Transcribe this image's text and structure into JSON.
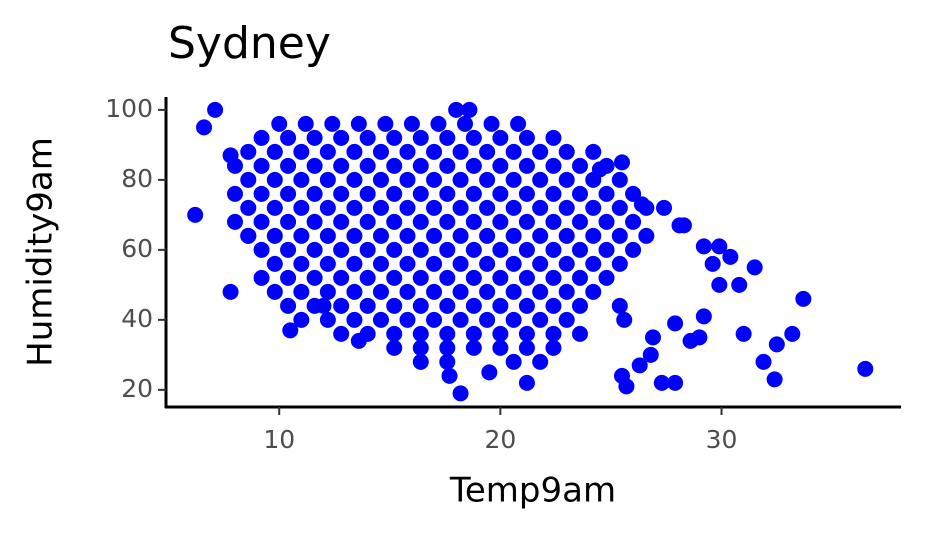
{
  "chart_data": {
    "type": "scatter",
    "title": "Sydney",
    "x_label": "Temp9am",
    "y_label": "Humidity9am",
    "color": "#0000ff",
    "xlim": [
      4.88,
      38.07
    ],
    "ylim": [
      15.1,
      103.4
    ],
    "xticks": [
      10,
      20,
      30
    ],
    "yticks": [
      20,
      40,
      60,
      80,
      100
    ],
    "grid": false,
    "x": [
      10,
      11.2,
      12.4,
      13.6,
      14.8,
      16,
      17.2,
      18.4,
      19.6,
      20.8,
      9.2,
      10.4,
      11.6,
      12.8,
      14,
      15.2,
      16.4,
      17.6,
      18.8,
      20,
      21.2,
      22.4,
      8.6,
      9.8,
      11,
      12.2,
      13.4,
      14.6,
      15.8,
      17,
      18.2,
      19.4,
      20.6,
      21.8,
      23,
      24.2,
      8,
      9.2,
      10.4,
      11.6,
      12.8,
      14,
      15.2,
      16.4,
      17.6,
      18.8,
      20,
      21.2,
      22.4,
      23.6,
      24.8,
      8.6,
      9.8,
      11,
      12.2,
      13.4,
      14.6,
      15.8,
      17,
      18.2,
      19.4,
      20.6,
      21.8,
      23,
      24.2,
      25.4,
      8,
      9.2,
      10.4,
      11.6,
      12.8,
      14,
      15.2,
      16.4,
      17.6,
      18.8,
      20,
      21.2,
      22.4,
      23.6,
      24.8,
      26,
      8.6,
      9.8,
      11,
      12.2,
      13.4,
      14.6,
      15.8,
      17,
      18.2,
      19.4,
      20.6,
      21.8,
      23,
      24.2,
      25.4,
      26.6,
      8,
      9.2,
      10.4,
      11.6,
      12.8,
      14,
      15.2,
      16.4,
      17.6,
      18.8,
      20,
      21.2,
      22.4,
      23.6,
      24.8,
      26,
      8.6,
      9.8,
      11,
      12.2,
      13.4,
      14.6,
      15.8,
      17,
      18.2,
      19.4,
      20.6,
      21.8,
      23,
      24.2,
      25.4,
      26.6,
      9.2,
      10.4,
      11.6,
      12.8,
      14,
      15.2,
      16.4,
      17.6,
      18.8,
      20,
      21.2,
      22.4,
      23.6,
      24.8,
      26,
      9.8,
      11,
      12.2,
      13.4,
      14.6,
      15.8,
      17,
      18.2,
      19.4,
      20.6,
      21.8,
      23,
      24.2,
      25.4,
      9.2,
      10.4,
      11.6,
      12.8,
      14,
      15.2,
      16.4,
      17.6,
      18.8,
      20,
      21.2,
      22.4,
      23.6,
      24.8,
      9.8,
      11,
      12.2,
      13.4,
      14.6,
      15.8,
      17,
      18.2,
      19.4,
      20.6,
      21.8,
      23,
      24.2,
      10.4,
      11.6,
      12.8,
      14,
      15.2,
      16.4,
      17.6,
      18.8,
      20,
      21.2,
      22.4,
      23.6,
      11,
      12.2,
      13.4,
      14.6,
      15.8,
      17,
      18.2,
      19.4,
      20.6,
      21.8,
      23,
      12.8,
      14,
      15.2,
      16.4,
      17.6,
      18.8,
      20,
      21.2,
      22.4,
      23.6,
      15.2,
      16.4,
      17.6,
      18.8,
      20,
      21.2,
      22.4,
      16.4,
      17.6,
      20.6,
      21.8,
      6.6,
      7.1,
      6.2,
      36.5,
      33.7,
      33.2,
      32.5,
      32.4,
      31.9,
      31,
      30.8,
      31.5,
      30.4,
      29.9,
      29.9,
      29.6,
      29.2,
      29,
      28.6,
      27.9,
      27.9,
      27.3,
      26.9,
      26.8,
      26.3,
      25.7,
      25.5,
      25.6,
      25.4,
      25.5,
      24.5,
      26.4,
      27.4,
      28.1,
      28.3,
      29.2,
      21.2,
      19.5,
      18.2,
      17.7,
      18,
      18.6,
      13.6,
      12,
      10.5,
      7.8,
      8.6,
      7.8
    ],
    "y": [
      96,
      96,
      96,
      96,
      96,
      96,
      96,
      96,
      96,
      96,
      92,
      92,
      92,
      92,
      92,
      92,
      92,
      92,
      92,
      92,
      92,
      92,
      88,
      88,
      88,
      88,
      88,
      88,
      88,
      88,
      88,
      88,
      88,
      88,
      88,
      88,
      84,
      84,
      84,
      84,
      84,
      84,
      84,
      84,
      84,
      84,
      84,
      84,
      84,
      84,
      84,
      80,
      80,
      80,
      80,
      80,
      80,
      80,
      80,
      80,
      80,
      80,
      80,
      80,
      80,
      80,
      76,
      76,
      76,
      76,
      76,
      76,
      76,
      76,
      76,
      76,
      76,
      76,
      76,
      76,
      76,
      76,
      72,
      72,
      72,
      72,
      72,
      72,
      72,
      72,
      72,
      72,
      72,
      72,
      72,
      72,
      72,
      72,
      68,
      68,
      68,
      68,
      68,
      68,
      68,
      68,
      68,
      68,
      68,
      68,
      68,
      68,
      68,
      68,
      64,
      64,
      64,
      64,
      64,
      64,
      64,
      64,
      64,
      64,
      64,
      64,
      64,
      64,
      64,
      64,
      60,
      60,
      60,
      60,
      60,
      60,
      60,
      60,
      60,
      60,
      60,
      60,
      60,
      60,
      60,
      56,
      56,
      56,
      56,
      56,
      56,
      56,
      56,
      56,
      56,
      56,
      56,
      56,
      56,
      52,
      52,
      52,
      52,
      52,
      52,
      52,
      52,
      52,
      52,
      52,
      52,
      52,
      52,
      48,
      48,
      48,
      48,
      48,
      48,
      48,
      48,
      48,
      48,
      48,
      48,
      48,
      44,
      44,
      44,
      44,
      44,
      44,
      44,
      44,
      44,
      44,
      44,
      44,
      40,
      40,
      40,
      40,
      40,
      40,
      40,
      40,
      40,
      40,
      40,
      36,
      36,
      36,
      36,
      36,
      36,
      36,
      36,
      36,
      36,
      32,
      32,
      32,
      32,
      32,
      32,
      32,
      28,
      28,
      28,
      28,
      95,
      100,
      70,
      26,
      46,
      36,
      33,
      23,
      28,
      36,
      50,
      55,
      58,
      61,
      50,
      56,
      41,
      35,
      34,
      22,
      39,
      22,
      35,
      30,
      27,
      21,
      24,
      40,
      44,
      85,
      83,
      73,
      72,
      67,
      67,
      61,
      22,
      25,
      19,
      24,
      100,
      100,
      34,
      44,
      37,
      48,
      64,
      87
    ]
  }
}
